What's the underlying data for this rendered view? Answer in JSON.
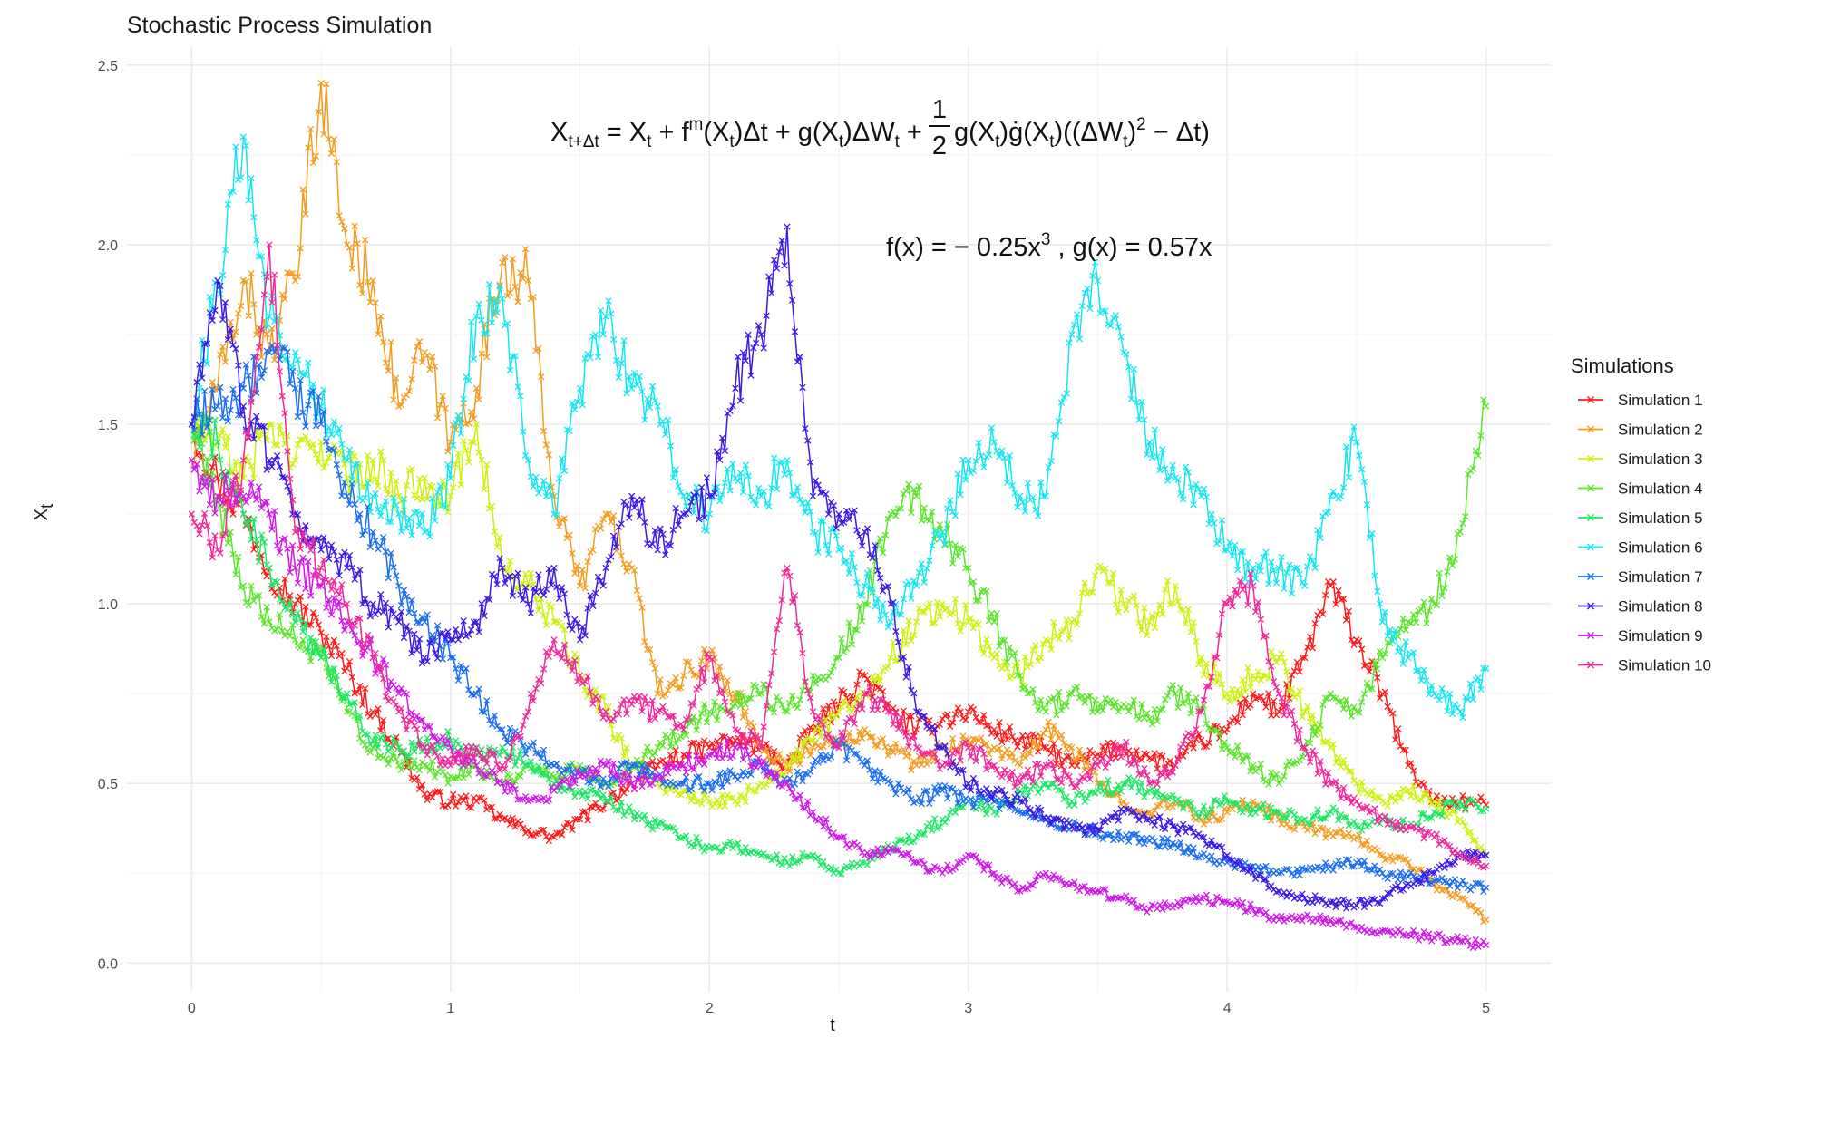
{
  "title": "Stochastic Process Simulation",
  "chart_data": {
    "type": "line",
    "title": "Stochastic Process Simulation",
    "xlabel": "t",
    "ylabel": "X",
    "ylabel_subscript": "t",
    "xlim": [
      -0.25,
      5.25
    ],
    "ylim": [
      -0.08,
      2.55
    ],
    "x_ticks": [
      0,
      1,
      2,
      3,
      4,
      5
    ],
    "y_ticks": [
      0.0,
      0.5,
      1.0,
      1.5,
      2.0,
      2.5
    ],
    "x_tick_labels": [
      "0",
      "1",
      "2",
      "3",
      "4",
      "5"
    ],
    "y_tick_labels": [
      "0.0",
      "0.5",
      "1.0",
      "1.5",
      "2.0",
      "2.5"
    ],
    "grid": true,
    "marker": "x",
    "legend_title": "Simulations",
    "legend_position": "right",
    "annotations": {
      "scheme": {
        "lhs": "X",
        "lhs_sub": "t+Δt",
        "eq": " = X",
        "t1_sub": "t",
        "plus1": " + f",
        "f_sup": "m",
        "f_arg": "(X",
        "f_arg_sub": "t",
        "f_arg_end": ")Δt",
        "plus2": " + g(X",
        "g_sub": "t",
        "g_end": ")ΔW",
        "dw_sub": "t",
        "plus3": " + ",
        "frac_num": "1",
        "frac_den": "2",
        "tail1": "g(X",
        "tail1_sub": "t",
        "tail2": ")ġ(X",
        "tail2_sub": "t",
        "tail3": ")((ΔW",
        "tail3_sub": "t",
        "tail4": ")",
        "tail4_sup": "2",
        "tail5": " − Δt)"
      },
      "functions": {
        "part1": "f(x) = − 0.25x",
        "part1_sup": "3",
        "part2": " , g(x) = 0.57x"
      }
    },
    "series": [
      {
        "name": "Simulation 1",
        "color": "#ff1a1a",
        "x": [
          0,
          0.1,
          0.2,
          0.3,
          0.4,
          0.5,
          0.6,
          0.7,
          0.8,
          0.9,
          1.0,
          1.1,
          1.2,
          1.3,
          1.4,
          1.5,
          1.6,
          1.7,
          1.8,
          1.9,
          2.0,
          2.1,
          2.2,
          2.3,
          2.4,
          2.5,
          2.6,
          2.7,
          2.8,
          2.9,
          3.0,
          3.1,
          3.2,
          3.3,
          3.4,
          3.5,
          3.6,
          3.7,
          3.8,
          3.9,
          4.0,
          4.1,
          4.2,
          4.3,
          4.4,
          4.5,
          4.6,
          4.7,
          4.8,
          4.9,
          5.0
        ],
        "y": [
          1.5,
          1.35,
          1.25,
          1.1,
          1.0,
          0.92,
          0.82,
          0.7,
          0.6,
          0.47,
          0.45,
          0.45,
          0.4,
          0.37,
          0.35,
          0.4,
          0.45,
          0.5,
          0.55,
          0.58,
          0.6,
          0.62,
          0.6,
          0.55,
          0.65,
          0.72,
          0.8,
          0.7,
          0.65,
          0.68,
          0.7,
          0.65,
          0.62,
          0.6,
          0.55,
          0.58,
          0.6,
          0.57,
          0.55,
          0.62,
          0.65,
          0.75,
          0.7,
          0.85,
          1.05,
          0.9,
          0.75,
          0.55,
          0.45,
          0.45,
          0.44
        ]
      },
      {
        "name": "Simulation 2",
        "color": "#f39c1f",
        "x": [
          0,
          0.1,
          0.2,
          0.3,
          0.4,
          0.5,
          0.6,
          0.7,
          0.8,
          0.9,
          1.0,
          1.1,
          1.2,
          1.3,
          1.4,
          1.5,
          1.6,
          1.7,
          1.8,
          1.9,
          2.0,
          2.1,
          2.2,
          2.3,
          2.4,
          2.5,
          2.6,
          2.7,
          2.8,
          2.9,
          3.0,
          3.1,
          3.2,
          3.3,
          3.4,
          3.5,
          3.6,
          3.7,
          3.8,
          3.9,
          4.0,
          4.1,
          4.2,
          4.3,
          4.4,
          4.5,
          4.6,
          4.7,
          4.8,
          4.9,
          5.0
        ],
        "y": [
          1.4,
          1.6,
          1.9,
          1.7,
          1.9,
          2.45,
          2.0,
          1.9,
          1.55,
          1.7,
          1.45,
          1.6,
          1.95,
          1.9,
          1.3,
          1.05,
          1.25,
          1.1,
          0.75,
          0.8,
          0.85,
          0.75,
          0.6,
          0.55,
          0.6,
          0.62,
          0.65,
          0.6,
          0.55,
          0.6,
          0.62,
          0.6,
          0.55,
          0.65,
          0.6,
          0.5,
          0.45,
          0.42,
          0.45,
          0.4,
          0.42,
          0.45,
          0.4,
          0.38,
          0.36,
          0.35,
          0.3,
          0.28,
          0.22,
          0.18,
          0.12
        ]
      },
      {
        "name": "Simulation 3",
        "color": "#ccf20d",
        "x": [
          0,
          0.1,
          0.2,
          0.3,
          0.4,
          0.5,
          0.6,
          0.7,
          0.8,
          0.9,
          1.0,
          1.1,
          1.2,
          1.3,
          1.4,
          1.5,
          1.6,
          1.7,
          1.8,
          1.9,
          2.0,
          2.1,
          2.2,
          2.3,
          2.4,
          2.5,
          2.6,
          2.7,
          2.8,
          2.9,
          3.0,
          3.1,
          3.2,
          3.3,
          3.4,
          3.5,
          3.6,
          3.7,
          3.8,
          3.9,
          4.0,
          4.1,
          4.2,
          4.3,
          4.4,
          4.5,
          4.6,
          4.7,
          4.8,
          4.9,
          5.0
        ],
        "y": [
          1.5,
          1.45,
          1.35,
          1.5,
          1.4,
          1.45,
          1.35,
          1.4,
          1.3,
          1.35,
          1.3,
          1.5,
          1.1,
          1.05,
          0.95,
          0.8,
          0.7,
          0.55,
          0.5,
          0.48,
          0.45,
          0.45,
          0.5,
          0.55,
          0.62,
          0.7,
          0.75,
          0.85,
          0.95,
          1.0,
          0.95,
          0.85,
          0.8,
          0.9,
          0.95,
          1.1,
          1.0,
          0.95,
          1.05,
          0.85,
          0.75,
          0.8,
          0.85,
          0.7,
          0.6,
          0.5,
          0.45,
          0.48,
          0.45,
          0.4,
          0.3
        ]
      },
      {
        "name": "Simulation 4",
        "color": "#5ae62a",
        "x": [
          0,
          0.1,
          0.2,
          0.3,
          0.4,
          0.5,
          0.6,
          0.7,
          0.8,
          0.9,
          1.0,
          1.1,
          1.2,
          1.3,
          1.4,
          1.5,
          1.6,
          1.7,
          1.8,
          1.9,
          2.0,
          2.1,
          2.2,
          2.3,
          2.4,
          2.5,
          2.6,
          2.7,
          2.8,
          2.9,
          3.0,
          3.1,
          3.2,
          3.3,
          3.4,
          3.5,
          3.6,
          3.7,
          3.8,
          3.9,
          4.0,
          4.1,
          4.2,
          4.3,
          4.4,
          4.5,
          4.6,
          4.7,
          4.8,
          4.9,
          5.0
        ],
        "y": [
          1.5,
          1.3,
          1.05,
          0.95,
          0.9,
          0.85,
          0.7,
          0.6,
          0.55,
          0.55,
          0.52,
          0.55,
          0.5,
          0.55,
          0.52,
          0.55,
          0.5,
          0.55,
          0.6,
          0.65,
          0.7,
          0.72,
          0.75,
          0.7,
          0.8,
          0.85,
          1.0,
          1.25,
          1.3,
          1.2,
          1.1,
          0.95,
          0.8,
          0.7,
          0.75,
          0.7,
          0.72,
          0.68,
          0.75,
          0.7,
          0.6,
          0.55,
          0.5,
          0.6,
          0.75,
          0.7,
          0.85,
          0.95,
          1.0,
          1.2,
          1.55
        ]
      },
      {
        "name": "Simulation 5",
        "color": "#1ce866",
        "x": [
          0,
          0.1,
          0.2,
          0.3,
          0.4,
          0.5,
          0.6,
          0.7,
          0.8,
          0.9,
          1.0,
          1.1,
          1.2,
          1.3,
          1.4,
          1.5,
          1.6,
          1.7,
          1.8,
          1.9,
          2.0,
          2.1,
          2.2,
          2.3,
          2.4,
          2.5,
          2.6,
          2.7,
          2.8,
          2.9,
          3.0,
          3.1,
          3.2,
          3.3,
          3.4,
          3.5,
          3.6,
          3.7,
          3.8,
          3.9,
          4.0,
          4.1,
          4.2,
          4.3,
          4.4,
          4.5,
          4.6,
          4.7,
          4.8,
          4.9,
          5.0
        ],
        "y": [
          1.5,
          1.45,
          1.25,
          1.1,
          0.95,
          0.85,
          0.75,
          0.62,
          0.6,
          0.6,
          0.62,
          0.58,
          0.6,
          0.55,
          0.5,
          0.48,
          0.45,
          0.42,
          0.38,
          0.35,
          0.32,
          0.33,
          0.3,
          0.28,
          0.3,
          0.25,
          0.28,
          0.32,
          0.35,
          0.4,
          0.45,
          0.42,
          0.48,
          0.5,
          0.45,
          0.48,
          0.5,
          0.48,
          0.45,
          0.42,
          0.45,
          0.43,
          0.42,
          0.4,
          0.42,
          0.38,
          0.4,
          0.38,
          0.42,
          0.45,
          0.43
        ]
      },
      {
        "name": "Simulation 6",
        "color": "#14e7f0",
        "x": [
          0,
          0.1,
          0.2,
          0.3,
          0.4,
          0.5,
          0.6,
          0.7,
          0.8,
          0.9,
          1.0,
          1.1,
          1.2,
          1.3,
          1.4,
          1.5,
          1.6,
          1.7,
          1.8,
          1.9,
          2.0,
          2.1,
          2.2,
          2.3,
          2.4,
          2.5,
          2.6,
          2.7,
          2.8,
          2.9,
          3.0,
          3.1,
          3.2,
          3.3,
          3.4,
          3.5,
          3.6,
          3.7,
          3.8,
          3.9,
          4.0,
          4.1,
          4.2,
          4.3,
          4.4,
          4.5,
          4.6,
          4.7,
          4.8,
          4.9,
          5.0
        ],
        "y": [
          1.5,
          1.9,
          2.3,
          1.8,
          1.7,
          1.55,
          1.4,
          1.3,
          1.25,
          1.2,
          1.35,
          1.8,
          1.85,
          1.4,
          1.25,
          1.6,
          1.8,
          1.6,
          1.55,
          1.3,
          1.25,
          1.35,
          1.3,
          1.4,
          1.2,
          1.15,
          1.05,
          0.95,
          1.05,
          1.2,
          1.4,
          1.45,
          1.3,
          1.3,
          1.75,
          1.9,
          1.7,
          1.45,
          1.35,
          1.3,
          1.15,
          1.1,
          1.1,
          1.05,
          1.3,
          1.45,
          0.95,
          0.85,
          0.75,
          0.7,
          0.82
        ]
      },
      {
        "name": "Simulation 7",
        "color": "#1a6ef2",
        "x": [
          0,
          0.1,
          0.2,
          0.3,
          0.4,
          0.5,
          0.6,
          0.7,
          0.8,
          0.9,
          1.0,
          1.1,
          1.2,
          1.3,
          1.4,
          1.5,
          1.6,
          1.7,
          1.8,
          1.9,
          2.0,
          2.1,
          2.2,
          2.3,
          2.4,
          2.5,
          2.6,
          2.7,
          2.8,
          2.9,
          3.0,
          3.1,
          3.2,
          3.3,
          3.4,
          3.5,
          3.6,
          3.7,
          3.8,
          3.9,
          4.0,
          4.1,
          4.2,
          4.3,
          4.4,
          4.5,
          4.6,
          4.7,
          4.8,
          4.9,
          5.0
        ],
        "y": [
          1.5,
          1.55,
          1.6,
          1.7,
          1.6,
          1.5,
          1.3,
          1.2,
          1.05,
          0.95,
          0.85,
          0.75,
          0.65,
          0.6,
          0.55,
          0.52,
          0.5,
          0.55,
          0.52,
          0.5,
          0.5,
          0.52,
          0.55,
          0.5,
          0.55,
          0.6,
          0.55,
          0.5,
          0.45,
          0.48,
          0.45,
          0.45,
          0.42,
          0.4,
          0.38,
          0.36,
          0.35,
          0.34,
          0.33,
          0.3,
          0.28,
          0.27,
          0.25,
          0.26,
          0.27,
          0.28,
          0.25,
          0.24,
          0.23,
          0.22,
          0.21
        ]
      },
      {
        "name": "Simulation 8",
        "color": "#3a1ae6",
        "x": [
          0,
          0.1,
          0.2,
          0.3,
          0.4,
          0.5,
          0.6,
          0.7,
          0.8,
          0.9,
          1.0,
          1.1,
          1.2,
          1.3,
          1.4,
          1.5,
          1.6,
          1.7,
          1.8,
          1.9,
          2.0,
          2.1,
          2.2,
          2.3,
          2.4,
          2.5,
          2.6,
          2.7,
          2.8,
          2.9,
          3.0,
          3.1,
          3.2,
          3.3,
          3.4,
          3.5,
          3.6,
          3.7,
          3.8,
          3.9,
          4.0,
          4.1,
          4.2,
          4.3,
          4.4,
          4.5,
          4.6,
          4.7,
          4.8,
          4.9,
          5.0
        ],
        "y": [
          1.5,
          1.9,
          1.55,
          1.4,
          1.25,
          1.15,
          1.1,
          1.0,
          0.95,
          0.85,
          0.9,
          0.95,
          1.1,
          1.0,
          1.1,
          0.9,
          1.1,
          1.3,
          1.15,
          1.25,
          1.3,
          1.6,
          1.75,
          2.05,
          1.3,
          1.25,
          1.2,
          1.0,
          0.7,
          0.6,
          0.5,
          0.47,
          0.45,
          0.4,
          0.38,
          0.37,
          0.42,
          0.4,
          0.38,
          0.35,
          0.3,
          0.25,
          0.2,
          0.18,
          0.17,
          0.16,
          0.18,
          0.22,
          0.25,
          0.3,
          0.3
        ]
      },
      {
        "name": "Simulation 9",
        "color": "#d11ae8",
        "x": [
          0,
          0.1,
          0.2,
          0.3,
          0.4,
          0.5,
          0.6,
          0.7,
          0.8,
          0.9,
          1.0,
          1.1,
          1.2,
          1.3,
          1.4,
          1.5,
          1.6,
          1.7,
          1.8,
          1.9,
          2.0,
          2.1,
          2.2,
          2.3,
          2.4,
          2.5,
          2.6,
          2.7,
          2.8,
          2.9,
          3.0,
          3.1,
          3.2,
          3.3,
          3.4,
          3.5,
          3.6,
          3.7,
          3.8,
          3.9,
          4.0,
          4.1,
          4.2,
          4.3,
          4.4,
          4.5,
          4.6,
          4.7,
          4.8,
          4.9,
          5.0
        ],
        "y": [
          1.4,
          1.3,
          1.3,
          1.25,
          1.1,
          1.05,
          0.95,
          0.85,
          0.75,
          0.65,
          0.6,
          0.55,
          0.5,
          0.45,
          0.48,
          0.52,
          0.55,
          0.5,
          0.52,
          0.55,
          0.58,
          0.6,
          0.55,
          0.5,
          0.42,
          0.35,
          0.3,
          0.32,
          0.28,
          0.25,
          0.3,
          0.25,
          0.2,
          0.25,
          0.22,
          0.2,
          0.18,
          0.15,
          0.16,
          0.18,
          0.17,
          0.15,
          0.12,
          0.13,
          0.12,
          0.1,
          0.09,
          0.08,
          0.07,
          0.06,
          0.05
        ]
      },
      {
        "name": "Simulation 10",
        "color": "#f0289a",
        "x": [
          0,
          0.1,
          0.2,
          0.3,
          0.4,
          0.5,
          0.6,
          0.7,
          0.8,
          0.9,
          1.0,
          1.1,
          1.2,
          1.3,
          1.4,
          1.5,
          1.6,
          1.7,
          1.8,
          1.9,
          2.0,
          2.1,
          2.2,
          2.3,
          2.4,
          2.5,
          2.6,
          2.7,
          2.8,
          2.9,
          3.0,
          3.1,
          3.2,
          3.3,
          3.4,
          3.5,
          3.6,
          3.7,
          3.8,
          3.9,
          4.0,
          4.1,
          4.2,
          4.3,
          4.4,
          4.5,
          4.6,
          4.7,
          4.8,
          4.9,
          5.0
        ],
        "y": [
          1.25,
          1.15,
          1.4,
          2.0,
          1.2,
          1.1,
          1.0,
          0.85,
          0.7,
          0.6,
          0.55,
          0.6,
          0.55,
          0.7,
          0.9,
          0.8,
          0.7,
          0.72,
          0.7,
          0.65,
          0.85,
          0.65,
          0.6,
          1.1,
          0.7,
          0.6,
          0.75,
          0.7,
          0.6,
          0.55,
          0.6,
          0.55,
          0.5,
          0.55,
          0.5,
          0.55,
          0.6,
          0.5,
          0.55,
          0.7,
          1.0,
          1.05,
          0.75,
          0.6,
          0.5,
          0.45,
          0.4,
          0.38,
          0.35,
          0.3,
          0.27
        ]
      }
    ]
  }
}
